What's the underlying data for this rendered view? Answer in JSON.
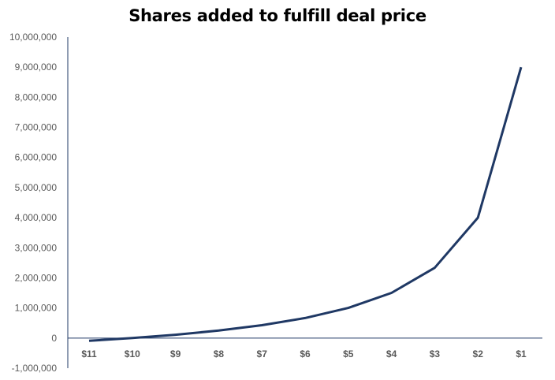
{
  "chart_data": {
    "type": "line",
    "title": "Shares added to fulfill deal price",
    "xlabel": "",
    "ylabel": "",
    "categories": [
      "$11",
      "$10",
      "$9",
      "$8",
      "$7",
      "$6",
      "$5",
      "$4",
      "$3",
      "$2",
      "$1"
    ],
    "series": [
      {
        "values": [
          -90909,
          0,
          111111,
          250000,
          428571,
          666667,
          1000000,
          1500000,
          2333333,
          4000000,
          9000000
        ]
      }
    ],
    "yticks": [
      "-1,000,000",
      "0",
      "1,000,000",
      "2,000,000",
      "3,000,000",
      "4,000,000",
      "5,000,000",
      "6,000,000",
      "7,000,000",
      "8,000,000",
      "9,000,000",
      "10,000,000"
    ],
    "ylim": [
      -1000000,
      10000000
    ],
    "grid": false,
    "legend": "none",
    "line_color": "#1f3864",
    "axis_color": "#1f3864"
  }
}
